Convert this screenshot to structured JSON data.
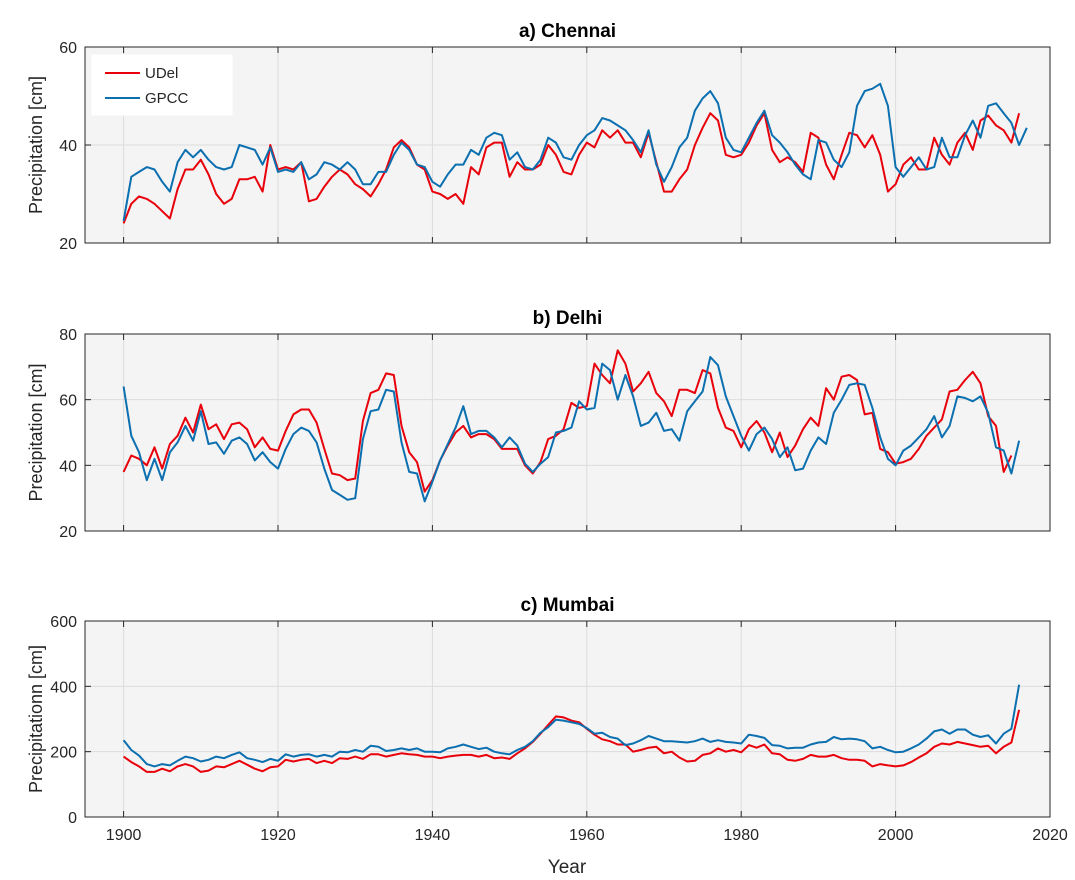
{
  "figure": {
    "xlabel": "Year"
  },
  "colors": {
    "udel": "#e8000b",
    "gpcc": "#0b6fb0",
    "axes_bg": "#f4f4f4",
    "grid": "#dcdcdc"
  },
  "chart_data": [
    {
      "type": "line",
      "title": "a) Chennai",
      "ylabel": "Precipitation [cm]",
      "xlim": [
        1895,
        2020
      ],
      "ylim": [
        20,
        60
      ],
      "yticks": [
        20,
        40,
        60
      ],
      "xticks": [
        1900,
        1920,
        1940,
        1960,
        1980,
        2000,
        2020
      ],
      "xtick_labels_shown": false,
      "legend": "top-left",
      "x_start": 1900,
      "series": [
        {
          "name": "UDel",
          "color": "#e8000b",
          "values": [
            24,
            28,
            29.5,
            29,
            28,
            26.5,
            25,
            31,
            35,
            35,
            37,
            34,
            30,
            28,
            29,
            33,
            33,
            33.5,
            30.5,
            40,
            35,
            35.5,
            35,
            36.5,
            28.5,
            29,
            31.5,
            33.5,
            35,
            34,
            32,
            31,
            29.5,
            32,
            35,
            39.5,
            41,
            39.5,
            36,
            35,
            30.5,
            30,
            29,
            30,
            28,
            35.5,
            34,
            39.5,
            40.5,
            40.5,
            33.5,
            36.5,
            35,
            35,
            36,
            40,
            38,
            34.5,
            34,
            38,
            40.5,
            39.5,
            43,
            41.5,
            43,
            40.5,
            40.5,
            37.5,
            42.5,
            36.5,
            30.5,
            30.5,
            33,
            35,
            40,
            43.5,
            46.5,
            45,
            38,
            37.5,
            38,
            40.5,
            44,
            46.5,
            39,
            36.5,
            37.5,
            36.5,
            34.5,
            42.5,
            41.5,
            36,
            33,
            38,
            42.5,
            42,
            39.5,
            42,
            38,
            30.5,
            32,
            36,
            37.5,
            35,
            35,
            41.5,
            38,
            36,
            40.5,
            42.5,
            39,
            45,
            46,
            44,
            43,
            40.5,
            46.5
          ]
        },
        {
          "name": "GPCC",
          "color": "#0b6fb0",
          "values": [
            24.5,
            33.5,
            34.5,
            35.5,
            35,
            32.5,
            30.5,
            36.5,
            39,
            37.5,
            39,
            37,
            35.5,
            35,
            35.5,
            40,
            39.5,
            39,
            36,
            39.5,
            34.5,
            35,
            34.5,
            36.5,
            33,
            34,
            36.5,
            36,
            35,
            36.5,
            35,
            32,
            32,
            34.5,
            34.5,
            38,
            40.5,
            39,
            36,
            35.5,
            32.5,
            31.5,
            34,
            36,
            36,
            39,
            38,
            41.5,
            42.5,
            42,
            37,
            38.5,
            35.5,
            35,
            37,
            41.5,
            40.5,
            37.5,
            37,
            40,
            42,
            43,
            45.5,
            45,
            44,
            43,
            41,
            38.5,
            43,
            36,
            32.5,
            35.5,
            39.5,
            41.5,
            47,
            49.5,
            51,
            48.5,
            41.5,
            39,
            38.5,
            41.5,
            44.5,
            47,
            42,
            40.5,
            38.5,
            36,
            34,
            33,
            41,
            40.5,
            37,
            35.5,
            38.5,
            48,
            51,
            51.5,
            52.5,
            48,
            35.5,
            33.5,
            35.5,
            37.5,
            35,
            35.5,
            41.5,
            37.5,
            37.5,
            42,
            45,
            41.5,
            48,
            48.5,
            46.5,
            44.5,
            40,
            43.5
          ]
        }
      ]
    },
    {
      "type": "line",
      "title": "b) Delhi",
      "ylabel": "Precipitation [cm]",
      "xlim": [
        1895,
        2020
      ],
      "ylim": [
        20,
        80
      ],
      "yticks": [
        20,
        40,
        60,
        80
      ],
      "xticks": [
        1900,
        1920,
        1940,
        1960,
        1980,
        2000,
        2020
      ],
      "xtick_labels_shown": false,
      "x_start": 1900,
      "series": [
        {
          "name": "UDel",
          "color": "#e8000b",
          "values": [
            38,
            43,
            42,
            40,
            45.5,
            39,
            46.5,
            49,
            54.5,
            50,
            58.5,
            51,
            52.5,
            48,
            52.5,
            53,
            51,
            45.5,
            48.5,
            45,
            44.5,
            50.5,
            55.5,
            57,
            57,
            53,
            45,
            37.5,
            37,
            35.5,
            36,
            53.5,
            62,
            63,
            68,
            67.5,
            52,
            44,
            41,
            32,
            35.5,
            41.5,
            46,
            50,
            52,
            48.5,
            49.5,
            49.5,
            48,
            45,
            45,
            45,
            40,
            37.5,
            41,
            48,
            49,
            51,
            59,
            57.5,
            58,
            71,
            67.5,
            65,
            75,
            71,
            62.5,
            65,
            68.5,
            62,
            59.5,
            55,
            63,
            63,
            62,
            69,
            68,
            57.5,
            51.5,
            50.5,
            45.5,
            51,
            53.5,
            50,
            44,
            50,
            42.5,
            46,
            51,
            54.5,
            52,
            63.5,
            60,
            67,
            67.5,
            66,
            55.5,
            56,
            45,
            44,
            40.5,
            41,
            42,
            45,
            49,
            51.5,
            54,
            62.5,
            63,
            66,
            68.5,
            65,
            55,
            52,
            38,
            43
          ]
        },
        {
          "name": "GPCC",
          "color": "#0b6fb0",
          "values": [
            64,
            49,
            44,
            35.5,
            42,
            35.5,
            44,
            47,
            52,
            47.5,
            56.5,
            46.5,
            47,
            43.5,
            47.5,
            48.5,
            46.5,
            41.5,
            44,
            41,
            39,
            45,
            49.5,
            51.5,
            50.5,
            47,
            39,
            32.5,
            31,
            29.5,
            30,
            48,
            56.5,
            57,
            63,
            62.5,
            47,
            38,
            37.5,
            29,
            35,
            41.5,
            46.5,
            51.5,
            58,
            49.5,
            50.5,
            50.5,
            48.5,
            45.5,
            48.5,
            46,
            40.5,
            38,
            40.5,
            42.5,
            50,
            50.5,
            51.5,
            59.5,
            57,
            57.5,
            71,
            69,
            60,
            67.5,
            61,
            52,
            53,
            56,
            50.5,
            51,
            47.5,
            56.5,
            59.5,
            62.5,
            73,
            70.5,
            61,
            55,
            49,
            44.5,
            49.5,
            51.5,
            48,
            42.5,
            45.5,
            38.5,
            39,
            44.5,
            48.5,
            46.5,
            56,
            60,
            64.5,
            65,
            64.5,
            57.5,
            48.5,
            42,
            40,
            44.5,
            46,
            48.5,
            51,
            55,
            48.5,
            52,
            61,
            60.5,
            59.5,
            61,
            56,
            45.5,
            44.5,
            37.5,
            47.5
          ]
        }
      ]
    },
    {
      "type": "line",
      "title": "c) Mumbai",
      "ylabel": "Precipitationn [cm]",
      "xlim": [
        1895,
        2020
      ],
      "ylim": [
        0,
        600
      ],
      "yticks": [
        0,
        200,
        400,
        600
      ],
      "xticks": [
        1900,
        1920,
        1940,
        1960,
        1980,
        2000,
        2020
      ],
      "xtick_labels_shown": true,
      "x_start": 1900,
      "series": [
        {
          "name": "UDel",
          "color": "#e8000b",
          "values": [
            185,
            168,
            155,
            138,
            138,
            148,
            140,
            155,
            162,
            155,
            138,
            142,
            155,
            152,
            162,
            172,
            160,
            148,
            140,
            152,
            155,
            175,
            170,
            175,
            178,
            165,
            172,
            165,
            180,
            178,
            185,
            178,
            192,
            192,
            185,
            190,
            195,
            192,
            190,
            185,
            185,
            180,
            185,
            188,
            190,
            190,
            185,
            190,
            180,
            182,
            178,
            195,
            210,
            230,
            255,
            282,
            308,
            305,
            295,
            290,
            270,
            252,
            238,
            232,
            222,
            222,
            200,
            205,
            212,
            215,
            195,
            200,
            182,
            170,
            172,
            190,
            195,
            210,
            200,
            205,
            198,
            220,
            212,
            222,
            195,
            192,
            175,
            172,
            178,
            190,
            185,
            185,
            190,
            180,
            175,
            175,
            172,
            155,
            162,
            158,
            155,
            158,
            168,
            182,
            195,
            215,
            225,
            222,
            230,
            225,
            220,
            215,
            218,
            195,
            215,
            228,
            328
          ]
        },
        {
          "name": "GPCC",
          "color": "#0b6fb0",
          "values": [
            235,
            205,
            188,
            162,
            155,
            162,
            158,
            172,
            185,
            180,
            170,
            175,
            185,
            180,
            190,
            198,
            180,
            175,
            168,
            178,
            172,
            192,
            185,
            190,
            192,
            185,
            190,
            185,
            200,
            198,
            205,
            200,
            218,
            215,
            202,
            205,
            210,
            205,
            210,
            200,
            200,
            198,
            210,
            215,
            222,
            215,
            208,
            212,
            200,
            195,
            192,
            205,
            215,
            232,
            258,
            275,
            298,
            295,
            290,
            285,
            272,
            255,
            258,
            245,
            240,
            220,
            225,
            235,
            248,
            240,
            232,
            232,
            230,
            228,
            232,
            240,
            230,
            235,
            230,
            228,
            225,
            252,
            248,
            242,
            220,
            218,
            210,
            212,
            212,
            222,
            228,
            230,
            245,
            238,
            240,
            238,
            232,
            210,
            215,
            205,
            198,
            200,
            210,
            222,
            240,
            262,
            268,
            255,
            268,
            268,
            252,
            245,
            250,
            225,
            255,
            270,
            405
          ]
        }
      ]
    }
  ]
}
